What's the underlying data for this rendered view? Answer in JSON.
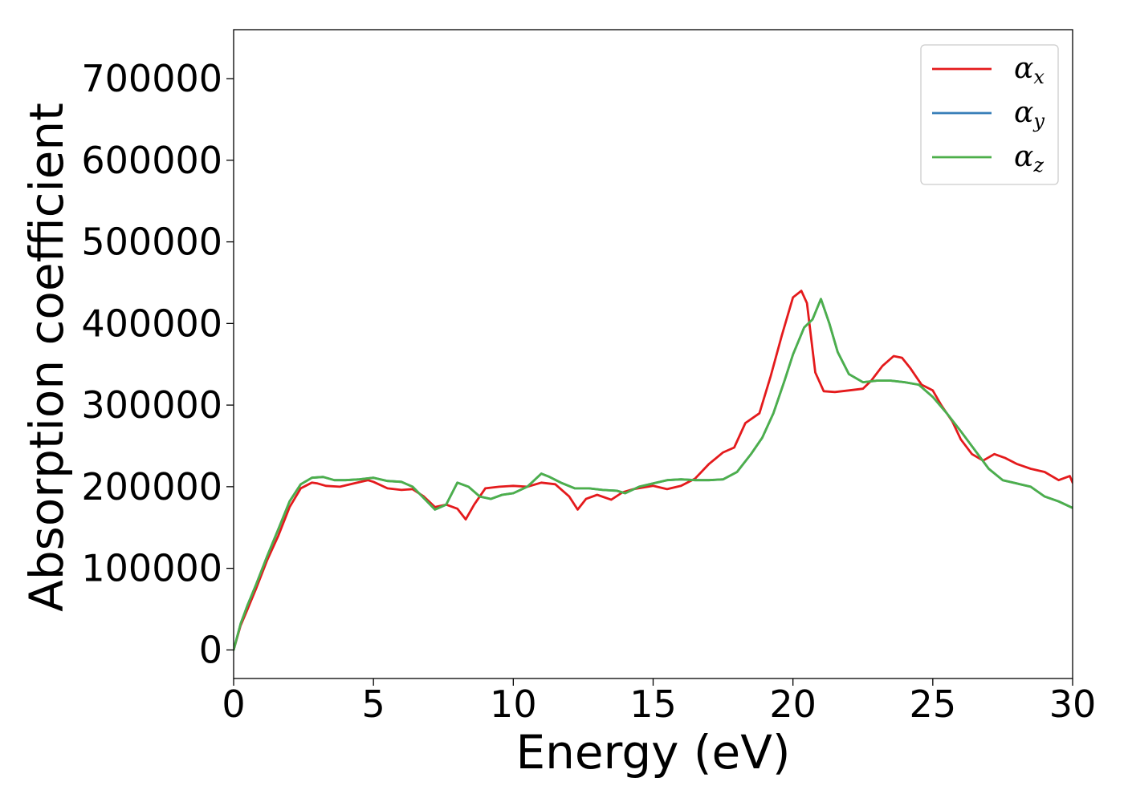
{
  "chart_data": {
    "type": "line",
    "xlabel": "Energy (eV)",
    "ylabel": "Absorption coefficient",
    "xlim": [
      0,
      30
    ],
    "ylim": [
      -35000,
      760000
    ],
    "xticks": [
      0,
      5,
      10,
      15,
      20,
      25,
      30
    ],
    "yticks": [
      0,
      100000,
      200000,
      300000,
      400000,
      500000,
      600000,
      700000
    ],
    "grid": false,
    "legend_position": "top-right",
    "series": [
      {
        "name": "x",
        "color": "#e41a1c",
        "x": [
          0,
          0.25,
          0.5,
          0.8,
          1.2,
          1.6,
          2.0,
          2.4,
          2.8,
          3.0,
          3.3,
          3.8,
          4.3,
          4.8,
          5.0,
          5.5,
          6.0,
          6.4,
          6.8,
          7.2,
          7.6,
          8.0,
          8.3,
          8.6,
          9.0,
          9.5,
          10.0,
          10.5,
          11.0,
          11.5,
          12.0,
          12.3,
          12.6,
          13.0,
          13.5,
          13.9,
          14.3,
          15.0,
          15.5,
          16.0,
          16.5,
          17.0,
          17.5,
          17.9,
          18.3,
          18.8,
          19.2,
          19.6,
          20.0,
          20.3,
          20.5,
          20.8,
          21.1,
          21.5,
          22.0,
          22.5,
          22.8,
          23.2,
          23.6,
          23.9,
          24.2,
          24.6,
          25.0,
          25.3,
          25.7,
          26.0,
          26.4,
          26.8,
          27.2,
          27.6,
          28.0,
          28.5,
          29.0,
          29.5,
          29.9,
          30.0
        ],
        "y": [
          0,
          30000,
          50000,
          75000,
          110000,
          140000,
          175000,
          198000,
          205000,
          204000,
          201000,
          200000,
          204000,
          208000,
          206000,
          198000,
          196000,
          197000,
          188000,
          175000,
          178000,
          173000,
          160000,
          178000,
          198000,
          200000,
          201000,
          200000,
          205000,
          203000,
          188000,
          172000,
          185000,
          190000,
          184000,
          193000,
          197000,
          201000,
          197000,
          201000,
          210000,
          228000,
          242000,
          248000,
          278000,
          290000,
          335000,
          385000,
          432000,
          440000,
          425000,
          340000,
          317000,
          316000,
          318000,
          320000,
          330000,
          348000,
          360000,
          358000,
          345000,
          325000,
          318000,
          300000,
          280000,
          258000,
          240000,
          232000,
          240000,
          235000,
          228000,
          222000,
          218000,
          208000,
          213000,
          205000
        ]
      },
      {
        "name": "y",
        "color": "#377eb8",
        "x": [
          0,
          0.25,
          0.5,
          0.8,
          1.2,
          1.6,
          2.0,
          2.4,
          2.8,
          3.2,
          3.6,
          4.0,
          4.5,
          5.0,
          5.5,
          6.0,
          6.4,
          6.8,
          7.2,
          7.6,
          8.0,
          8.4,
          8.8,
          9.2,
          9.6,
          10.0,
          10.5,
          11.0,
          11.3,
          11.7,
          12.2,
          12.7,
          13.2,
          13.7,
          14.0,
          14.5,
          15.0,
          15.5,
          16.0,
          16.5,
          17.0,
          17.5,
          18.0,
          18.5,
          18.9,
          19.3,
          19.7,
          20.0,
          20.4,
          20.7,
          21.0,
          21.3,
          21.6,
          22.0,
          22.5,
          23.0,
          23.5,
          24.0,
          24.5,
          25.0,
          25.5,
          26.0,
          26.5,
          27.0,
          27.5,
          28.0,
          28.5,
          29.0,
          29.5,
          30.0
        ],
        "y": [
          0,
          32000,
          55000,
          80000,
          115000,
          148000,
          182000,
          203000,
          211000,
          212000,
          208000,
          208000,
          209000,
          211000,
          207000,
          206000,
          200000,
          186000,
          172000,
          178000,
          205000,
          200000,
          188000,
          185000,
          190000,
          192000,
          200000,
          216000,
          212000,
          205000,
          198000,
          198000,
          196000,
          195000,
          192000,
          200000,
          204000,
          208000,
          209000,
          208000,
          208000,
          209000,
          218000,
          240000,
          260000,
          290000,
          330000,
          362000,
          395000,
          405000,
          430000,
          400000,
          365000,
          338000,
          328000,
          330000,
          330000,
          328000,
          325000,
          310000,
          290000,
          268000,
          245000,
          222000,
          208000,
          204000,
          200000,
          188000,
          182000,
          174000
        ]
      },
      {
        "name": "z",
        "color": "#4daf4a",
        "x": [
          0,
          0.25,
          0.5,
          0.8,
          1.2,
          1.6,
          2.0,
          2.4,
          2.8,
          3.2,
          3.6,
          4.0,
          4.5,
          5.0,
          5.5,
          6.0,
          6.4,
          6.8,
          7.2,
          7.6,
          8.0,
          8.4,
          8.8,
          9.2,
          9.6,
          10.0,
          10.5,
          11.0,
          11.3,
          11.7,
          12.2,
          12.7,
          13.2,
          13.7,
          14.0,
          14.5,
          15.0,
          15.5,
          16.0,
          16.5,
          17.0,
          17.5,
          18.0,
          18.5,
          18.9,
          19.3,
          19.7,
          20.0,
          20.4,
          20.7,
          21.0,
          21.3,
          21.6,
          22.0,
          22.5,
          23.0,
          23.5,
          24.0,
          24.5,
          25.0,
          25.5,
          26.0,
          26.5,
          27.0,
          27.5,
          28.0,
          28.5,
          29.0,
          29.5,
          30.0
        ],
        "y": [
          0,
          32000,
          55000,
          80000,
          115000,
          148000,
          182000,
          203000,
          211000,
          212000,
          208000,
          208000,
          209000,
          211000,
          207000,
          206000,
          200000,
          186000,
          172000,
          178000,
          205000,
          200000,
          188000,
          185000,
          190000,
          192000,
          200000,
          216000,
          212000,
          205000,
          198000,
          198000,
          196000,
          195000,
          192000,
          200000,
          204000,
          208000,
          209000,
          208000,
          208000,
          209000,
          218000,
          240000,
          260000,
          290000,
          330000,
          362000,
          395000,
          405000,
          430000,
          400000,
          365000,
          338000,
          328000,
          330000,
          330000,
          328000,
          325000,
          310000,
          290000,
          268000,
          245000,
          222000,
          208000,
          204000,
          200000,
          188000,
          182000,
          174000
        ]
      }
    ],
    "legend_symbol": "α"
  }
}
